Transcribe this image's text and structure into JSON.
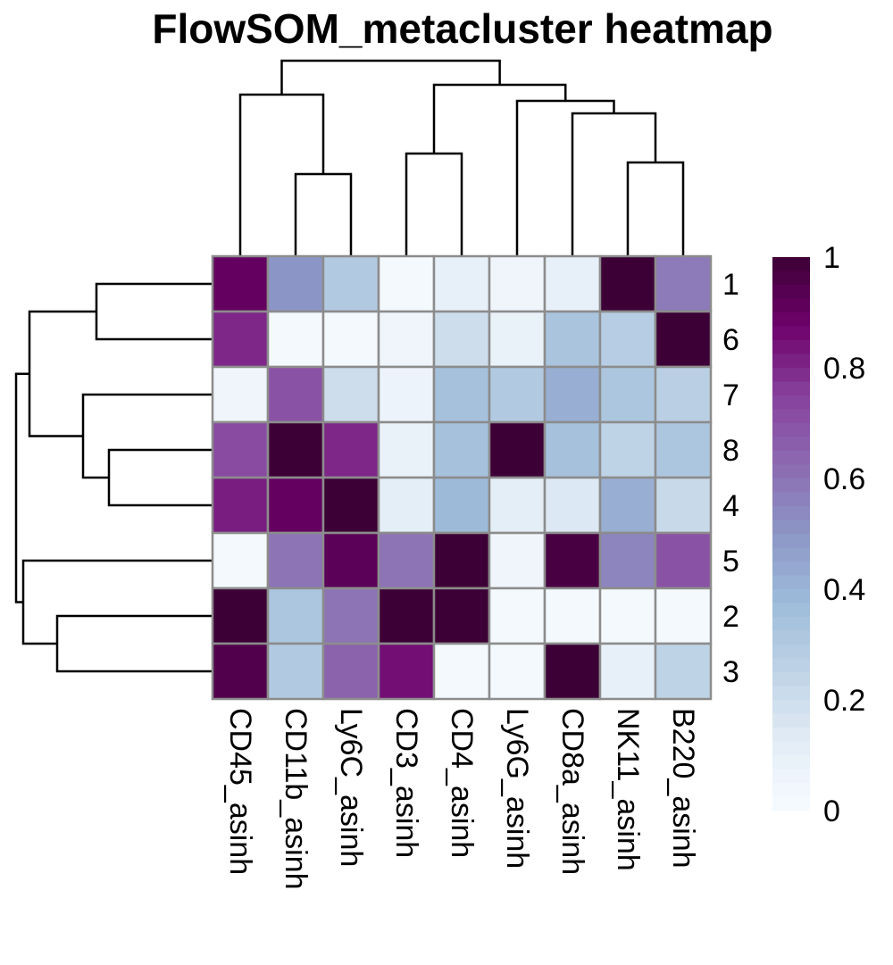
{
  "chart_data": {
    "type": "heatmap",
    "title": "FlowSOM_metacluster heatmap",
    "columns": [
      "CD45_asinh",
      "CD11b_asinh",
      "Ly6C_asinh",
      "CD3_asinh",
      "CD4_asinh",
      "Ly6G_asinh",
      "CD8a_asinh",
      "NK11_asinh",
      "B220_asinh"
    ],
    "rows": [
      "1",
      "6",
      "7",
      "8",
      "4",
      "5",
      "2",
      "3"
    ],
    "values": [
      [
        0.9,
        0.5,
        0.3,
        0.02,
        0.1,
        0.05,
        0.1,
        1.0,
        0.58
      ],
      [
        0.8,
        0.02,
        0.02,
        0.05,
        0.2,
        0.08,
        0.33,
        0.28,
        1.0
      ],
      [
        0.05,
        0.7,
        0.2,
        0.07,
        0.35,
        0.3,
        0.42,
        0.32,
        0.27
      ],
      [
        0.72,
        1.0,
        0.8,
        0.08,
        0.35,
        1.0,
        0.35,
        0.25,
        0.32
      ],
      [
        0.82,
        0.9,
        1.0,
        0.12,
        0.38,
        0.12,
        0.15,
        0.42,
        0.22
      ],
      [
        0.02,
        0.6,
        0.92,
        0.6,
        1.0,
        0.05,
        0.97,
        0.55,
        0.7
      ],
      [
        1.0,
        0.32,
        0.6,
        1.0,
        1.0,
        0.02,
        0.02,
        0.02,
        0.02
      ],
      [
        0.95,
        0.3,
        0.65,
        0.85,
        0.02,
        0.02,
        1.0,
        0.1,
        0.25
      ]
    ],
    "color_scale": {
      "range": [
        0,
        1
      ],
      "stops": [
        "#f7fbff",
        "#e3edf6",
        "#bfd3e6",
        "#9ebcda",
        "#8c96c6",
        "#8c6bb1",
        "#88419d",
        "#6e016b",
        "#3d0036"
      ]
    },
    "legend": {
      "position": "right",
      "ticks": [
        "0",
        "0.2",
        "0.4",
        "0.6",
        "0.8",
        "1"
      ]
    },
    "grid_color": "#8c8c8c"
  }
}
